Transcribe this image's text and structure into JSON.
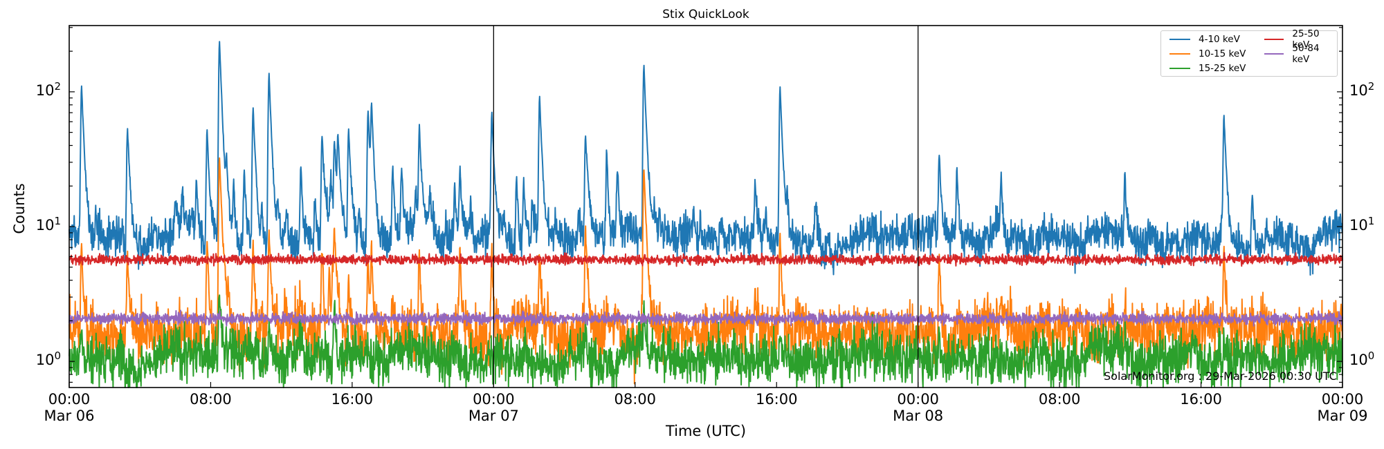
{
  "figure": {
    "title": "Stix QuickLook",
    "xlabel": "Time (UTC)",
    "ylabel": "Counts",
    "watermark": "SolarMonitor.org : 29-Mar-2026 00:30 UTC",
    "yticks": [
      {
        "base": "10",
        "exp": "2",
        "value": 100
      },
      {
        "base": "10",
        "exp": "1",
        "value": 10
      },
      {
        "base": "10",
        "exp": "0",
        "value": 1
      }
    ],
    "xticks": [
      {
        "hour": 0,
        "time": "00:00",
        "date": "Mar 06"
      },
      {
        "hour": 8,
        "time": "08:00",
        "date": ""
      },
      {
        "hour": 16,
        "time": "16:00",
        "date": ""
      },
      {
        "hour": 24,
        "time": "00:00",
        "date": "Mar 07"
      },
      {
        "hour": 32,
        "time": "08:00",
        "date": ""
      },
      {
        "hour": 40,
        "time": "16:00",
        "date": ""
      },
      {
        "hour": 48,
        "time": "00:00",
        "date": "Mar 08"
      },
      {
        "hour": 56,
        "time": "08:00",
        "date": ""
      },
      {
        "hour": 64,
        "time": "16:00",
        "date": ""
      },
      {
        "hour": 72,
        "time": "00:00",
        "date": "Mar 09"
      }
    ],
    "legend": [
      {
        "label": "4-10 keV",
        "color": "#1f77b4"
      },
      {
        "label": "10-15 keV",
        "color": "#ff7f0e"
      },
      {
        "label": "15-25 keV",
        "color": "#2ca02c"
      },
      {
        "label": "25-50 keV",
        "color": "#d62728"
      },
      {
        "label": "50-84 keV",
        "color": "#9467bd"
      }
    ]
  },
  "chart_data": {
    "type": "line",
    "title": "Stix QuickLook",
    "xlabel": "Time (UTC)",
    "ylabel": "Counts",
    "xscale": "time",
    "yscale": "log",
    "x_range_hours": [
      0,
      72
    ],
    "x_start": "Mar 06 00:00",
    "x_end": "Mar 09 00:00",
    "ylim": [
      0.64,
      310
    ],
    "day_dividers_hours": [
      24,
      48
    ],
    "legend_position": "upper right",
    "grid": false,
    "series": [
      {
        "name": "4-10 keV",
        "color": "#1f77b4",
        "baseline": 8.3,
        "noise": 0.07,
        "peaks": [
          {
            "h": 0.7,
            "v": 111
          },
          {
            "h": 1.5,
            "v": 11
          },
          {
            "h": 2.5,
            "v": 10.5
          },
          {
            "h": 3.3,
            "v": 55
          },
          {
            "h": 4.8,
            "v": 11
          },
          {
            "h": 6.0,
            "v": 14
          },
          {
            "h": 6.4,
            "v": 16
          },
          {
            "h": 7.2,
            "v": 22
          },
          {
            "h": 7.8,
            "v": 50
          },
          {
            "h": 8.5,
            "v": 235
          },
          {
            "h": 8.9,
            "v": 25
          },
          {
            "h": 9.3,
            "v": 20
          },
          {
            "h": 9.9,
            "v": 27
          },
          {
            "h": 10.4,
            "v": 76
          },
          {
            "h": 10.9,
            "v": 15
          },
          {
            "h": 11.3,
            "v": 137
          },
          {
            "h": 11.8,
            "v": 15
          },
          {
            "h": 12.3,
            "v": 14
          },
          {
            "h": 13.1,
            "v": 29
          },
          {
            "h": 13.9,
            "v": 18
          },
          {
            "h": 14.3,
            "v": 46
          },
          {
            "h": 14.8,
            "v": 23
          },
          {
            "h": 15.0,
            "v": 43
          },
          {
            "h": 15.2,
            "v": 43
          },
          {
            "h": 15.8,
            "v": 53
          },
          {
            "h": 16.4,
            "v": 17
          },
          {
            "h": 16.9,
            "v": 75
          },
          {
            "h": 17.1,
            "v": 72
          },
          {
            "h": 18.3,
            "v": 29
          },
          {
            "h": 18.8,
            "v": 27
          },
          {
            "h": 19.6,
            "v": 20
          },
          {
            "h": 19.8,
            "v": 52
          },
          {
            "h": 20.4,
            "v": 17
          },
          {
            "h": 21.3,
            "v": 12
          },
          {
            "h": 21.8,
            "v": 20
          },
          {
            "h": 22.1,
            "v": 27
          },
          {
            "h": 22.7,
            "v": 13
          },
          {
            "h": 23.9,
            "v": 70
          },
          {
            "h": 24.6,
            "v": 11
          },
          {
            "h": 25.3,
            "v": 24
          },
          {
            "h": 25.7,
            "v": 21
          },
          {
            "h": 26.2,
            "v": 14
          },
          {
            "h": 26.6,
            "v": 92
          },
          {
            "h": 27.5,
            "v": 11
          },
          {
            "h": 28.8,
            "v": 15
          },
          {
            "h": 29.2,
            "v": 48
          },
          {
            "h": 30.4,
            "v": 37
          },
          {
            "h": 31.0,
            "v": 27
          },
          {
            "h": 31.5,
            "v": 11
          },
          {
            "h": 32.5,
            "v": 155
          },
          {
            "h": 33.1,
            "v": 13
          },
          {
            "h": 33.4,
            "v": 12
          },
          {
            "h": 34.5,
            "v": 12
          },
          {
            "h": 35.3,
            "v": 13
          },
          {
            "h": 35.7,
            "v": 13
          },
          {
            "h": 36.8,
            "v": 12
          },
          {
            "h": 37.8,
            "v": 12
          },
          {
            "h": 38.8,
            "v": 22
          },
          {
            "h": 39.4,
            "v": 14
          },
          {
            "h": 40.2,
            "v": 109
          },
          {
            "h": 40.6,
            "v": 15
          },
          {
            "h": 42.2,
            "v": 15
          },
          {
            "h": 42.9,
            "v": 10
          },
          {
            "h": 47.5,
            "v": 12
          },
          {
            "h": 48.9,
            "v": 12
          },
          {
            "h": 49.2,
            "v": 36
          },
          {
            "h": 50.2,
            "v": 29
          },
          {
            "h": 52.7,
            "v": 25
          },
          {
            "h": 55.0,
            "v": 10
          },
          {
            "h": 56.5,
            "v": 10
          },
          {
            "h": 59.7,
            "v": 24
          },
          {
            "h": 62.5,
            "v": 10
          },
          {
            "h": 63.9,
            "v": 10
          },
          {
            "h": 65.3,
            "v": 67
          },
          {
            "h": 66.9,
            "v": 20
          },
          {
            "h": 69.0,
            "v": 10
          },
          {
            "h": 69.4,
            "v": 10
          },
          {
            "h": 71.9,
            "v": 12
          }
        ]
      },
      {
        "name": "10-15 keV",
        "color": "#ff7f0e",
        "baseline": 1.7,
        "noise": 0.1,
        "peaks": [
          {
            "h": 0.7,
            "v": 7.5
          },
          {
            "h": 3.3,
            "v": 6.7
          },
          {
            "h": 6.2,
            "v": 2.4
          },
          {
            "h": 7.8,
            "v": 7.8
          },
          {
            "h": 8.5,
            "v": 33
          },
          {
            "h": 8.8,
            "v": 3.3
          },
          {
            "h": 9.0,
            "v": 3.3
          },
          {
            "h": 10.4,
            "v": 7.8
          },
          {
            "h": 11.3,
            "v": 9
          },
          {
            "h": 12.2,
            "v": 2.5
          },
          {
            "h": 13.1,
            "v": 2.9
          },
          {
            "h": 14.3,
            "v": 6.8
          },
          {
            "h": 14.7,
            "v": 4.8
          },
          {
            "h": 14.9,
            "v": 4.6
          },
          {
            "h": 15.0,
            "v": 8.8
          },
          {
            "h": 15.8,
            "v": 4.1
          },
          {
            "h": 16.9,
            "v": 6.3
          },
          {
            "h": 17.1,
            "v": 6.6
          },
          {
            "h": 18.3,
            "v": 2.9
          },
          {
            "h": 19.8,
            "v": 6.5
          },
          {
            "h": 20.8,
            "v": 2.6
          },
          {
            "h": 22.1,
            "v": 6.6
          },
          {
            "h": 23.9,
            "v": 6.8
          },
          {
            "h": 26.6,
            "v": 5.5
          },
          {
            "h": 29.2,
            "v": 9.5
          },
          {
            "h": 30.4,
            "v": 2.8
          },
          {
            "h": 32.5,
            "v": 27
          },
          {
            "h": 33.1,
            "v": 2.5
          },
          {
            "h": 35.3,
            "v": 2.5
          },
          {
            "h": 38.8,
            "v": 3.3
          },
          {
            "h": 40.2,
            "v": 8.5
          },
          {
            "h": 41.2,
            "v": 2.3
          },
          {
            "h": 49.2,
            "v": 6.6
          },
          {
            "h": 50.2,
            "v": 2.6
          },
          {
            "h": 52.7,
            "v": 2.8
          },
          {
            "h": 59.7,
            "v": 2.5
          },
          {
            "h": 65.3,
            "v": 6.6
          },
          {
            "h": 66.9,
            "v": 2.3
          }
        ]
      },
      {
        "name": "15-25 keV",
        "color": "#2ca02c",
        "baseline": 1.12,
        "noise": 0.09,
        "peaks": [
          {
            "h": 0.7,
            "v": 1.9
          },
          {
            "h": 8.5,
            "v": 3.3
          },
          {
            "h": 11.3,
            "v": 1.8
          },
          {
            "h": 15.0,
            "v": 2.8
          },
          {
            "h": 32.5,
            "v": 2.7
          },
          {
            "h": 29.2,
            "v": 1.8
          },
          {
            "h": 40.2,
            "v": 1.6
          },
          {
            "h": 49.2,
            "v": 1.8
          },
          {
            "h": 65.3,
            "v": 1.5
          }
        ]
      },
      {
        "name": "25-50 keV",
        "color": "#d62728",
        "baseline": 5.7,
        "noise": 0.018,
        "peaks": []
      },
      {
        "name": "50-84 keV",
        "color": "#9467bd",
        "baseline": 2.08,
        "noise": 0.02,
        "peaks": []
      }
    ]
  }
}
